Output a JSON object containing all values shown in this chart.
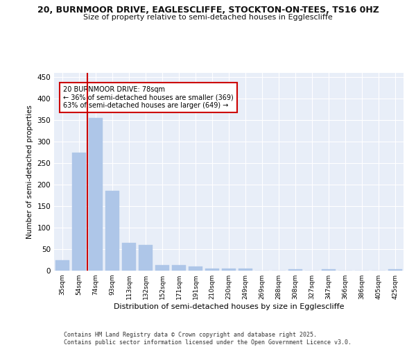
{
  "title_line1": "20, BURNMOOR DRIVE, EAGLESCLIFFE, STOCKTON-ON-TEES, TS16 0HZ",
  "title_line2": "Size of property relative to semi-detached houses in Egglescliffe",
  "xlabel": "Distribution of semi-detached houses by size in Egglescliffe",
  "ylabel": "Number of semi-detached properties",
  "categories": [
    "35sqm",
    "54sqm",
    "74sqm",
    "93sqm",
    "113sqm",
    "132sqm",
    "152sqm",
    "171sqm",
    "191sqm",
    "210sqm",
    "230sqm",
    "249sqm",
    "269sqm",
    "288sqm",
    "308sqm",
    "327sqm",
    "347sqm",
    "366sqm",
    "386sqm",
    "405sqm",
    "425sqm"
  ],
  "values": [
    25,
    275,
    355,
    185,
    65,
    60,
    13,
    13,
    10,
    5,
    5,
    5,
    0,
    0,
    3,
    0,
    3,
    0,
    0,
    0,
    3
  ],
  "bar_color": "#aec6e8",
  "bar_edge_color": "#aec6e8",
  "property_bin_index": 2,
  "vline_color": "#cc0000",
  "annotation_text": "20 BURNMOOR DRIVE: 78sqm\n← 36% of semi-detached houses are smaller (369)\n63% of semi-detached houses are larger (649) →",
  "annotation_box_color": "#ffffff",
  "annotation_box_edge": "#cc0000",
  "footer_text": "Contains HM Land Registry data © Crown copyright and database right 2025.\nContains public sector information licensed under the Open Government Licence v3.0.",
  "background_color": "#e8eef8",
  "grid_color": "#ffffff",
  "ylim": [
    0,
    460
  ],
  "yticks": [
    0,
    50,
    100,
    150,
    200,
    250,
    300,
    350,
    400,
    450
  ]
}
